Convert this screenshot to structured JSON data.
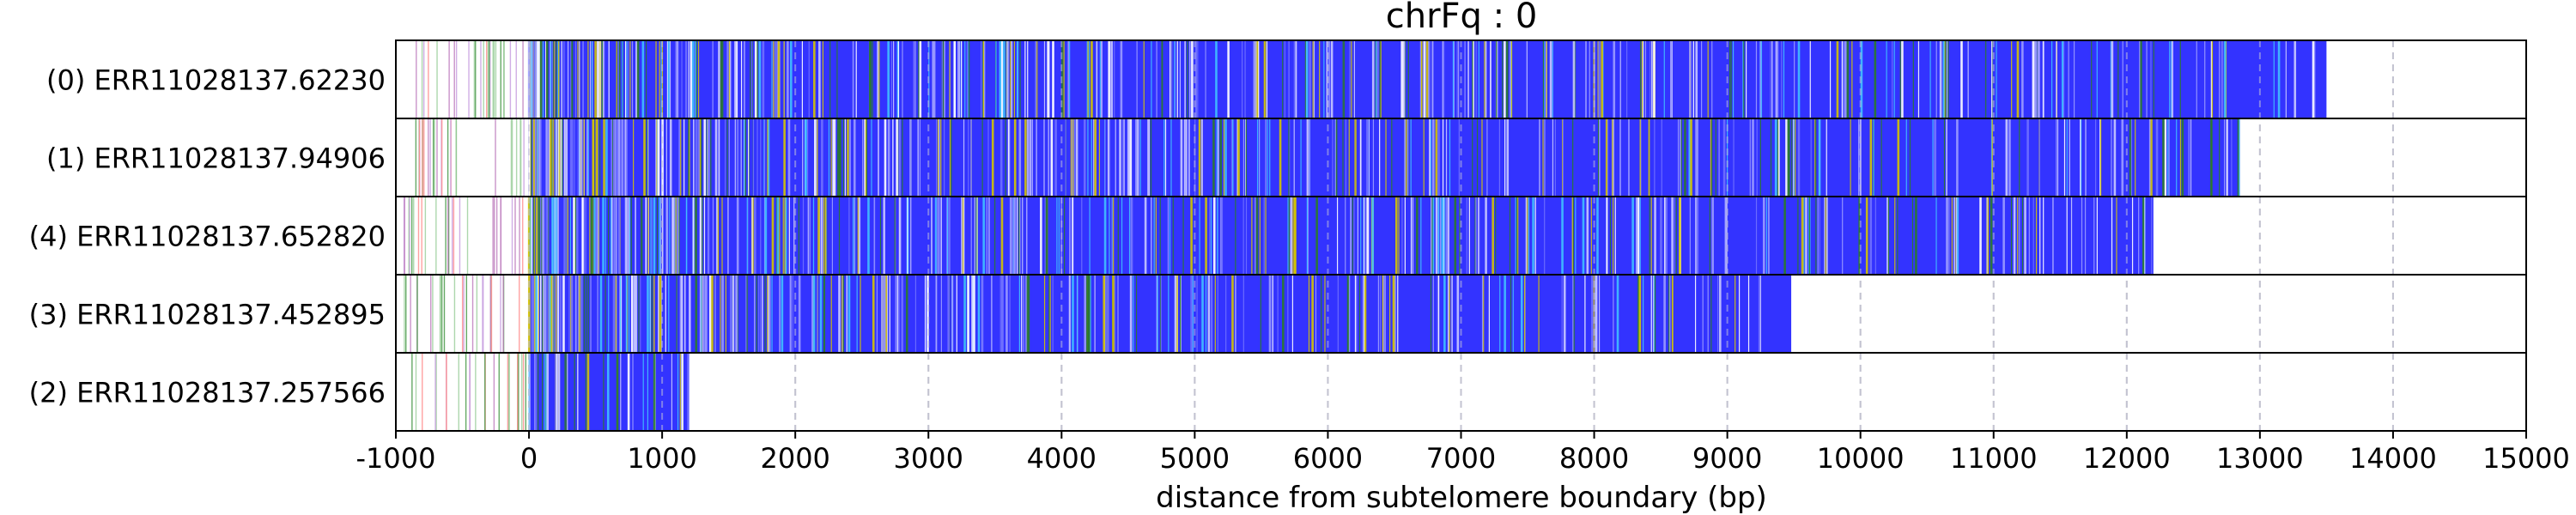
{
  "chart_data": {
    "type": "bar",
    "orientation": "horizontal",
    "title": "chrFq : 0",
    "xlabel": "distance from subtelomere boundary (bp)",
    "ylabel": "",
    "xlim": [
      -1000,
      15000
    ],
    "xticks": [
      -1000,
      0,
      1000,
      2000,
      3000,
      4000,
      5000,
      6000,
      7000,
      8000,
      9000,
      10000,
      11000,
      12000,
      13000,
      14000,
      15000
    ],
    "grid": "x, dashed, light gray",
    "subtelomere_boundary": 0,
    "colors": {
      "main": "#3333ff",
      "unit_palette": [
        "#2a7a2a",
        "#40c0ff",
        "#c8c8ff",
        "#ffffff",
        "#d4c400",
        "#9b9bff",
        "#7070ff"
      ],
      "left_region_palette": [
        "#4a9a4a",
        "#9fd09f",
        "#c080c0",
        "#ff9090",
        "#c8a0e0"
      ],
      "grid": "#c8c8c8"
    },
    "reads": [
      {
        "label": "(0) ERR11028137.62230",
        "start": 0,
        "end": 13500
      },
      {
        "label": "(1) ERR11028137.94906",
        "start": 0,
        "end": 12850
      },
      {
        "label": "(4) ERR11028137.652820",
        "start": 0,
        "end": 12200
      },
      {
        "label": "(3) ERR11028137.452895",
        "start": 0,
        "end": 9480
      },
      {
        "label": "(2) ERR11028137.257566",
        "start": 0,
        "end": 1200
      }
    ]
  }
}
